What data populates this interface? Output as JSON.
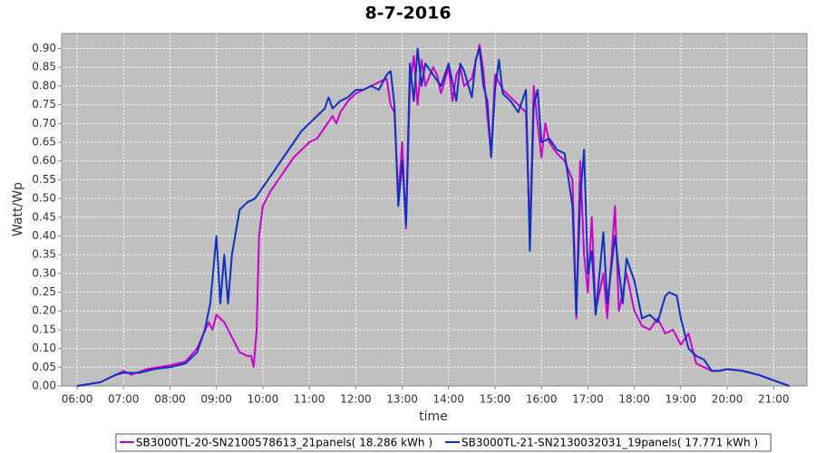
{
  "chart_data": {
    "type": "line",
    "title": "8-7-2016",
    "x_label": "time",
    "y_label": "Watt/Wp",
    "plot_background": "#c0c0c0",
    "grid": true,
    "legend": "bottom",
    "xlim": [
      "05:40",
      "21:43"
    ],
    "xticks": [
      "06:00",
      "07:00",
      "08:00",
      "09:00",
      "10:00",
      "11:00",
      "12:00",
      "13:00",
      "14:00",
      "15:00",
      "16:00",
      "17:00",
      "18:00",
      "19:00",
      "20:00",
      "21:00"
    ],
    "ylim": [
      0,
      0.94
    ],
    "yticks": [
      {
        "value": 0,
        "label": "0.00"
      },
      0.05,
      {
        "value": 0.1,
        "label": "0.10"
      },
      0.15,
      {
        "value": 0.2,
        "label": "0.20"
      },
      0.25,
      {
        "value": 0.3,
        "label": "0.30"
      },
      0.35,
      {
        "value": 0.4,
        "label": "0.40"
      },
      0.45,
      {
        "value": 0.5,
        "label": "0.50"
      },
      0.55,
      {
        "value": 0.6,
        "label": "0.60"
      },
      0.65,
      {
        "value": 0.7,
        "label": "0.70"
      },
      0.75,
      {
        "value": 0.8,
        "label": "0.80"
      },
      0.85,
      {
        "value": 0.9,
        "label": "0.90"
      }
    ],
    "series": [
      {
        "name": "SB3000TL-20-SN2100578613_21panels( 18.286 kWh )",
        "color": "#cc00cc",
        "x": [
          "06:00",
          "06:30",
          "06:50",
          "07:00",
          "07:10",
          "07:30",
          "08:00",
          "08:20",
          "08:35",
          "08:50",
          "08:55",
          "09:00",
          "09:10",
          "09:20",
          "09:30",
          "09:40",
          "09:45",
          "09:48",
          "09:52",
          "09:55",
          "10:00",
          "10:10",
          "10:20",
          "10:30",
          "10:40",
          "10:50",
          "11:00",
          "11:10",
          "11:20",
          "11:30",
          "11:35",
          "11:40",
          "11:50",
          "12:00",
          "12:10",
          "12:20",
          "12:30",
          "12:40",
          "12:45",
          "12:50",
          "12:55",
          "13:00",
          "13:05",
          "13:10",
          "13:15",
          "13:20",
          "13:25",
          "13:30",
          "13:40",
          "13:45",
          "13:50",
          "14:00",
          "14:05",
          "14:10",
          "14:15",
          "14:20",
          "14:30",
          "14:40",
          "14:45",
          "14:50",
          "14:55",
          "15:00",
          "15:10",
          "15:20",
          "15:30",
          "15:40",
          "15:45",
          "15:50",
          "15:55",
          "16:00",
          "16:05",
          "16:10",
          "16:20",
          "16:30",
          "16:40",
          "16:45",
          "16:50",
          "16:55",
          "17:00",
          "17:05",
          "17:10",
          "17:20",
          "17:25",
          "17:35",
          "17:40",
          "17:50",
          "18:00",
          "18:10",
          "18:20",
          "18:30",
          "18:40",
          "18:50",
          "19:00",
          "19:10",
          "19:20",
          "19:30",
          "19:40",
          "19:50",
          "20:00",
          "20:20",
          "20:40",
          "21:00",
          "21:20"
        ],
        "values": [
          0.0,
          0.01,
          0.03,
          0.04,
          0.03,
          0.045,
          0.055,
          0.065,
          0.1,
          0.17,
          0.15,
          0.19,
          0.17,
          0.13,
          0.09,
          0.08,
          0.08,
          0.05,
          0.15,
          0.4,
          0.48,
          0.52,
          0.55,
          0.58,
          0.61,
          0.63,
          0.65,
          0.66,
          0.69,
          0.72,
          0.7,
          0.73,
          0.76,
          0.78,
          0.79,
          0.8,
          0.81,
          0.82,
          0.75,
          0.73,
          0.5,
          0.65,
          0.42,
          0.8,
          0.88,
          0.75,
          0.87,
          0.8,
          0.85,
          0.83,
          0.78,
          0.85,
          0.76,
          0.83,
          0.85,
          0.8,
          0.82,
          0.91,
          0.84,
          0.72,
          0.62,
          0.83,
          0.79,
          0.77,
          0.75,
          0.73,
          0.4,
          0.8,
          0.7,
          0.61,
          0.7,
          0.65,
          0.62,
          0.6,
          0.55,
          0.18,
          0.6,
          0.35,
          0.25,
          0.45,
          0.2,
          0.3,
          0.18,
          0.48,
          0.2,
          0.3,
          0.2,
          0.16,
          0.15,
          0.18,
          0.14,
          0.15,
          0.11,
          0.14,
          0.06,
          0.05,
          0.04,
          0.04,
          0.045,
          0.04,
          0.03,
          0.015,
          0.0
        ]
      },
      {
        "name": "SB3000TL-21-SN2130032031_19panels( 17.771 kWh )",
        "color": "#1030c0",
        "x": [
          "06:00",
          "06:30",
          "06:50",
          "07:00",
          "07:20",
          "07:40",
          "08:00",
          "08:20",
          "08:35",
          "08:45",
          "08:52",
          "09:00",
          "09:05",
          "09:10",
          "09:15",
          "09:20",
          "09:30",
          "09:40",
          "09:50",
          "10:00",
          "10:10",
          "10:20",
          "10:30",
          "10:40",
          "10:50",
          "11:00",
          "11:10",
          "11:20",
          "11:25",
          "11:30",
          "11:40",
          "11:50",
          "12:00",
          "12:10",
          "12:20",
          "12:30",
          "12:40",
          "12:45",
          "12:50",
          "12:55",
          "13:00",
          "13:05",
          "13:10",
          "13:15",
          "13:20",
          "13:25",
          "13:30",
          "13:40",
          "13:50",
          "14:00",
          "14:10",
          "14:15",
          "14:20",
          "14:30",
          "14:35",
          "14:40",
          "14:45",
          "14:50",
          "14:55",
          "15:00",
          "15:05",
          "15:10",
          "15:20",
          "15:30",
          "15:40",
          "15:45",
          "15:50",
          "15:55",
          "16:00",
          "16:10",
          "16:20",
          "16:30",
          "16:40",
          "16:45",
          "16:50",
          "16:55",
          "17:00",
          "17:05",
          "17:10",
          "17:20",
          "17:25",
          "17:35",
          "17:45",
          "17:50",
          "18:00",
          "18:10",
          "18:20",
          "18:30",
          "18:40",
          "18:45",
          "18:55",
          "19:00",
          "19:10",
          "19:20",
          "19:30",
          "19:40",
          "19:50",
          "20:00",
          "20:20",
          "20:40",
          "21:00",
          "21:20"
        ],
        "values": [
          0.0,
          0.01,
          0.03,
          0.035,
          0.035,
          0.045,
          0.05,
          0.06,
          0.09,
          0.15,
          0.22,
          0.4,
          0.22,
          0.35,
          0.22,
          0.35,
          0.47,
          0.49,
          0.5,
          0.53,
          0.56,
          0.59,
          0.62,
          0.65,
          0.68,
          0.7,
          0.72,
          0.74,
          0.77,
          0.74,
          0.76,
          0.77,
          0.79,
          0.79,
          0.8,
          0.79,
          0.83,
          0.84,
          0.75,
          0.48,
          0.6,
          0.43,
          0.86,
          0.76,
          0.9,
          0.8,
          0.86,
          0.83,
          0.8,
          0.86,
          0.76,
          0.86,
          0.84,
          0.77,
          0.87,
          0.9,
          0.8,
          0.76,
          0.61,
          0.79,
          0.87,
          0.78,
          0.76,
          0.73,
          0.79,
          0.36,
          0.75,
          0.79,
          0.65,
          0.66,
          0.63,
          0.62,
          0.48,
          0.19,
          0.5,
          0.63,
          0.3,
          0.36,
          0.19,
          0.41,
          0.22,
          0.4,
          0.22,
          0.34,
          0.28,
          0.18,
          0.19,
          0.17,
          0.24,
          0.25,
          0.24,
          0.18,
          0.1,
          0.08,
          0.07,
          0.04,
          0.04,
          0.045,
          0.04,
          0.03,
          0.015,
          0.0
        ]
      }
    ]
  }
}
